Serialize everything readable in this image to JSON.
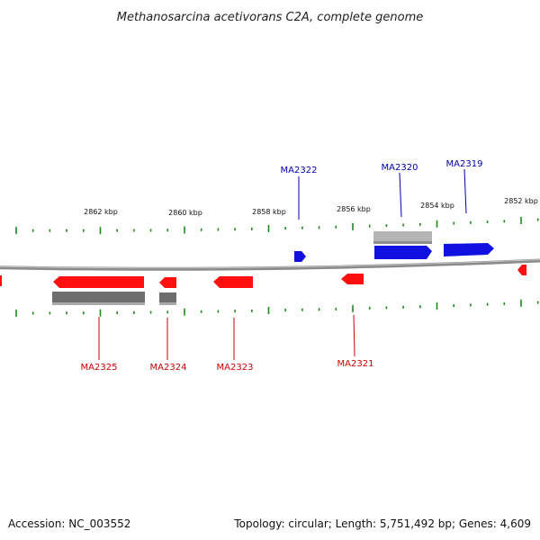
{
  "title": "Methanosarcina acetivorans C2A, complete genome",
  "footer": {
    "accession": "Accession: NC_003552",
    "summary": "Topology: circular; Length: 5,751,492 bp; Genes: 4,609"
  },
  "colors": {
    "forward": "#1010e0",
    "reverse": "#ff1010",
    "forward_label": "#0000aa",
    "reverse_label": "#cc0000",
    "tick": "#1a8a1a",
    "backbone": "#888888",
    "gray_light": "#b4b4b4",
    "gray_dark": "#707070"
  },
  "scale_labels": [
    "2862 kbp",
    "2860 kbp",
    "2858 kbp",
    "2856 kbp",
    "2854 kbp",
    "2852 kbp"
  ],
  "forward_genes": [
    {
      "label": "MA2322"
    },
    {
      "label": "MA2320"
    },
    {
      "label": "MA2319"
    }
  ],
  "reverse_genes": [
    {
      "label": "MA2325"
    },
    {
      "label": "MA2324"
    },
    {
      "label": "MA2323"
    },
    {
      "label": "MA2321"
    }
  ]
}
